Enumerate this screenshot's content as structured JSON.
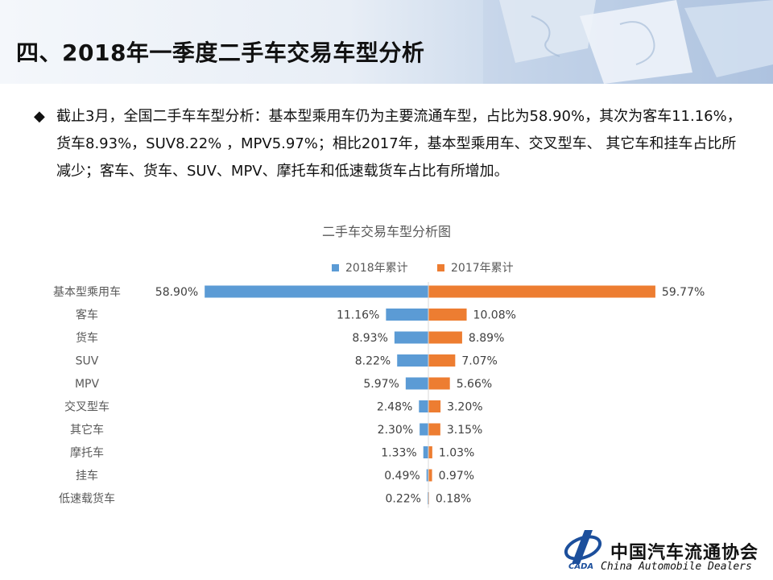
{
  "header": {
    "title": "四、2018年一季度二手车交易车型分析"
  },
  "bullet": {
    "symbol": "◆",
    "text": "截止3月，全国二手车车型分析：基本型乘用车仍为主要流通车型，占比为58.90%，其次为客车11.16%，货车8.93%，SUV8.22% ，MPV5.97%；相比2017年，基本型乘用车、交叉型车、 其它车和挂车占比所减少；客车、货车、SUV、MPV、摩托车和低速载货车占比有所增加。"
  },
  "footer": {
    "org_cn": "中国汽车流通协会",
    "org_en": "China  Automobile Dealers",
    "logo_abbr": "CADA"
  },
  "chart_data": {
    "type": "bar",
    "orientation": "horizontal-diverging",
    "title": "二手车交易车型分析图",
    "categories": [
      "基本型乘用车",
      "客车",
      "货车",
      "SUV",
      "MPV",
      "交叉型车",
      "其它车",
      "摩托车",
      "挂车",
      "低速载货车"
    ],
    "series": [
      {
        "name": "2018年累计",
        "color": "#5b9bd5",
        "values": [
          58.9,
          11.16,
          8.93,
          8.22,
          5.97,
          2.48,
          2.3,
          1.33,
          0.49,
          0.22
        ],
        "labels": [
          "58.90%",
          "11.16%",
          "8.93%",
          "8.22%",
          "5.97%",
          "2.48%",
          "2.30%",
          "1.33%",
          "0.49%",
          "0.22%"
        ]
      },
      {
        "name": "2017年累计",
        "color": "#ed7d31",
        "values": [
          59.77,
          10.08,
          8.89,
          7.07,
          5.66,
          3.2,
          3.15,
          1.03,
          0.97,
          0.18
        ],
        "labels": [
          "59.77%",
          "10.08%",
          "8.89%",
          "7.07%",
          "5.66%",
          "3.20%",
          "3.15%",
          "1.03%",
          "0.97%",
          "0.18%"
        ]
      }
    ],
    "xlim": [
      0,
      60
    ],
    "grid": false,
    "legend_position": "top-center"
  }
}
